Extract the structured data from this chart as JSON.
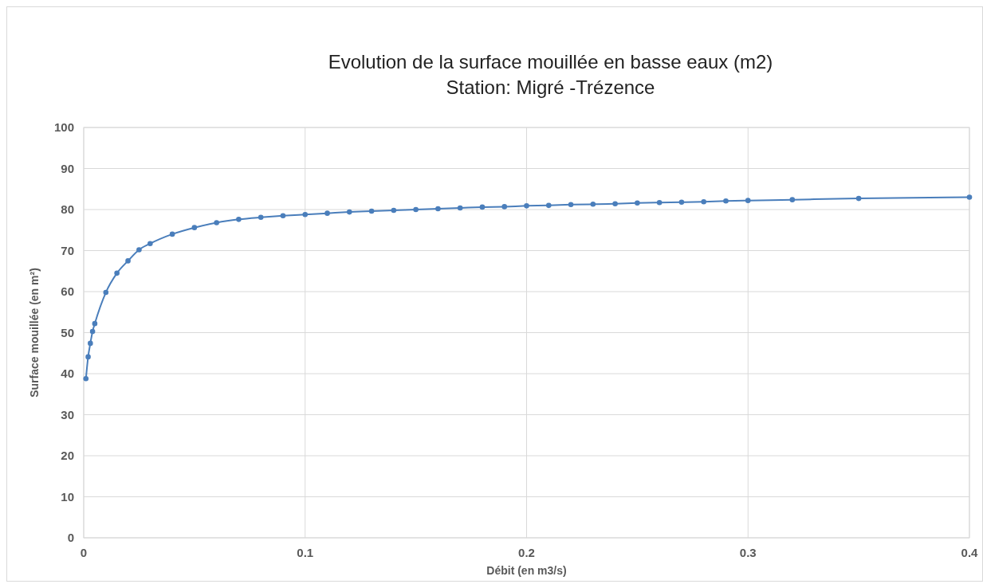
{
  "chart_data": {
    "type": "line",
    "title": "Evolution de la surface mouillée  en basse eaux  (m2)",
    "subtitle": "Station: Migré -Trézence",
    "xlabel": "Débit (en m3/s)",
    "ylabel": "Surface mouillée (en m²)",
    "x": [
      0.001,
      0.002,
      0.003,
      0.004,
      0.005,
      0.01,
      0.015,
      0.02,
      0.025,
      0.03,
      0.04,
      0.05,
      0.06,
      0.07,
      0.08,
      0.09,
      0.1,
      0.11,
      0.12,
      0.13,
      0.14,
      0.15,
      0.16,
      0.17,
      0.18,
      0.19,
      0.2,
      0.21,
      0.22,
      0.23,
      0.24,
      0.25,
      0.26,
      0.27,
      0.28,
      0.29,
      0.3,
      0.32,
      0.35,
      0.4
    ],
    "series": [
      {
        "color": "#4a7ebb",
        "values": [
          38.8,
          44.1,
          47.4,
          50.3,
          52.2,
          59.8,
          64.5,
          67.5,
          70.2,
          71.7,
          74,
          75.6,
          76.8,
          77.6,
          78.1,
          78.5,
          78.8,
          79.1,
          79.4,
          79.6,
          79.8,
          80,
          80.2,
          80.4,
          80.6,
          80.7,
          80.9,
          81,
          81.2,
          81.3,
          81.4,
          81.6,
          81.7,
          81.8,
          81.9,
          82.1,
          82.2,
          82.4,
          82.7,
          83
        ]
      }
    ],
    "xlim": [
      0,
      0.4
    ],
    "xticks": [
      0,
      0.1,
      0.2,
      0.3,
      0.4
    ],
    "ylim": [
      0,
      100
    ],
    "yticks": [
      0,
      10,
      20,
      30,
      40,
      50,
      60,
      70,
      80,
      90,
      100
    ],
    "grid": true,
    "marker": "circle",
    "line_style": "solid"
  }
}
